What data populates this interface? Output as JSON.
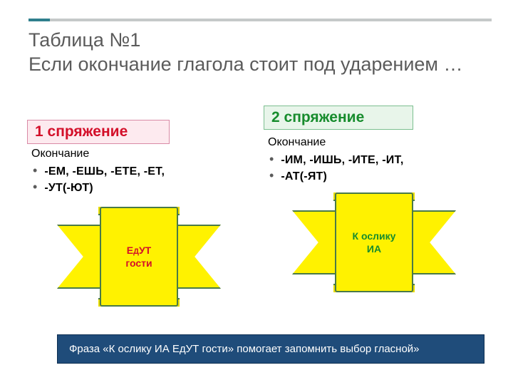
{
  "title": "Таблица №1\nЕсли окончание глагола стоит под ударением …",
  "conj1": {
    "badge": "1 спряжение",
    "endings_header": "Окончание",
    "line1": " -ЕМ, -ЕШЬ, -ЕТЕ, -ЕТ,",
    "line2": "-УТ(-ЮТ)",
    "ribbon_prefix": "Е",
    "ribbon_small": "Д",
    "ribbon_suffix": "УТ",
    "ribbon_line2": "гости"
  },
  "conj2": {
    "badge": "2 спряжение",
    "endings_header": "Окончание",
    "line1": " -ИМ, -ИШЬ, -ИТЕ, -ИТ,",
    "line2": "-АТ(-ЯТ)",
    "ribbon_line1": "К ослику",
    "ribbon_line2": "ИА"
  },
  "footer": "Фраза «К ослику ИА ЕдУТ гости» помогает запомнить выбор гласной»",
  "colors": {
    "ribbon_fill": "#fff200",
    "ribbon_stroke": "#4a7a48",
    "footer_bg": "#1f4c7a",
    "title_color": "#5b5b5b",
    "red": "#d30f29",
    "green": "#178c2d"
  }
}
